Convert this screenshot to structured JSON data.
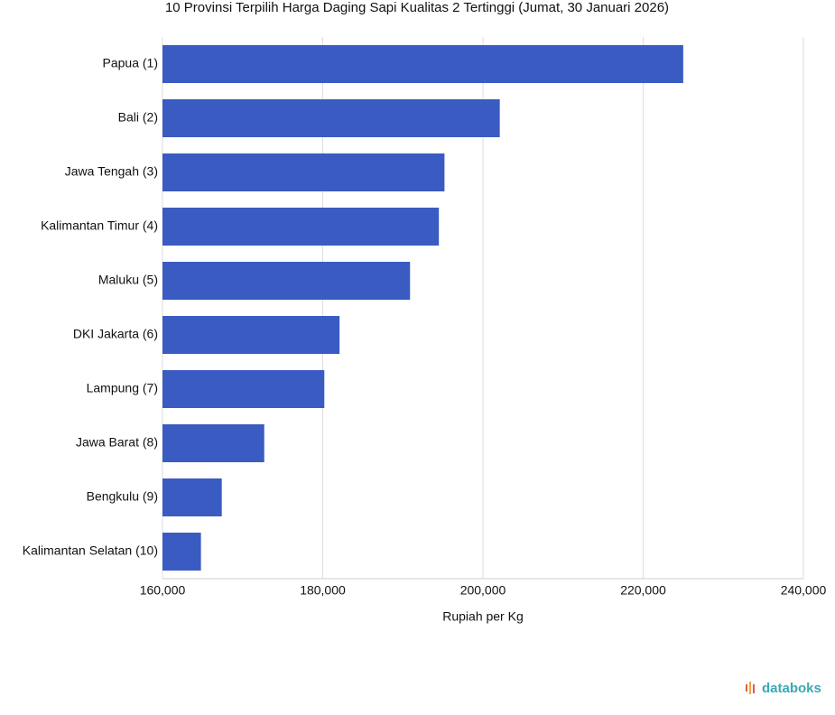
{
  "chart_data": {
    "type": "bar",
    "orientation": "horizontal",
    "title": "10 Provinsi Terpilih Harga Daging Sapi Kualitas 2 Tertinggi (Jumat, 30 Januari 2026)",
    "x_label": "Rupiah per Kg",
    "categories": [
      "Papua (1)",
      "Bali (2)",
      "Jawa Tengah (3)",
      "Kalimantan Timur (4)",
      "Maluku (5)",
      "DKI Jakarta (6)",
      "Lampung (7)",
      "Jawa Barat (8)",
      "Bengkulu (9)",
      "Kalimantan Selatan (10)"
    ],
    "values": [
      225000,
      202100,
      195200,
      194500,
      190900,
      182100,
      180200,
      172700,
      167400,
      164800
    ],
    "color": "#3a5bc1",
    "xlim": [
      160000,
      240000
    ],
    "xticks": [
      {
        "value": 160000,
        "label": "160,000"
      },
      {
        "value": 180000,
        "label": "180,000"
      },
      {
        "value": 200000,
        "label": "200,000"
      },
      {
        "value": 220000,
        "label": "220,000"
      },
      {
        "value": 240000,
        "label": "240,000"
      }
    ],
    "grid": true,
    "watermark": "databoks"
  }
}
